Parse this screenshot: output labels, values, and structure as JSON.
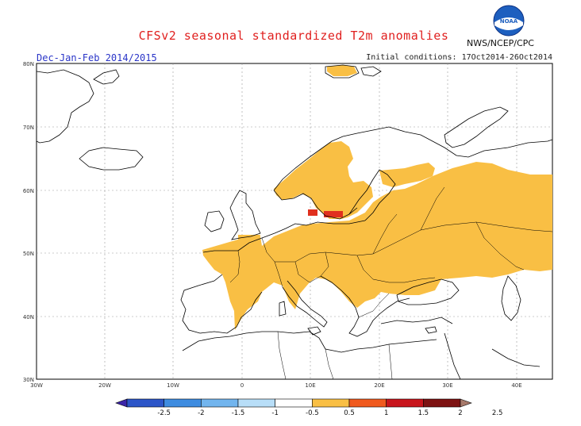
{
  "header": {
    "title": "CFSv2 seasonal standardized T2m anomalies",
    "period": "Dec-Jan-Feb 2014/2015",
    "initial_conditions": "Initial conditions: 17Oct2014-26Oct2014",
    "agency": "NWS/NCEP/CPC",
    "logo_text": "NOAA"
  },
  "map": {
    "lat_ticks": [
      "80N",
      "70N",
      "60N",
      "50N",
      "40N",
      "30N"
    ],
    "lon_ticks": [
      "30W",
      "20W",
      "10W",
      "0",
      "10E",
      "20E",
      "30E",
      "40E"
    ],
    "anomaly_region_color": "#f9bf44",
    "strong_anomaly_color": "#e0301e",
    "coastline_color": "#000000"
  },
  "colorbar": {
    "labels": [
      "-2.5",
      "-2",
      "-1.5",
      "-1",
      "-0.5",
      "0.5",
      "1",
      "1.5",
      "2",
      "2.5"
    ],
    "colors": [
      "#3b25a8",
      "#2c55c8",
      "#3e8ce0",
      "#72b5ee",
      "#b8def8",
      "#ffffff",
      "#f9bf44",
      "#f05a1e",
      "#c8151c",
      "#7d1212",
      "#a7796a"
    ]
  }
}
